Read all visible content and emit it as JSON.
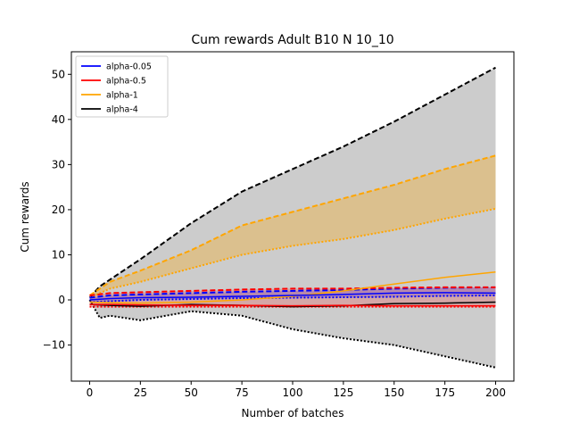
{
  "chart_data": {
    "type": "line",
    "title": "Cum rewards Adult B10 N 10_10",
    "xlabel": "Number of batches",
    "ylabel": "Cum rewards",
    "xlim": [
      -9,
      209
    ],
    "ylim": [
      -18,
      55
    ],
    "xticks": [
      0,
      25,
      50,
      75,
      100,
      125,
      150,
      175,
      200
    ],
    "yticks": [
      -10,
      0,
      10,
      20,
      30,
      40,
      50
    ],
    "legend_position": "top-left",
    "grid": false,
    "series": [
      {
        "name": "alpha-0.05",
        "color": "#0000ff",
        "mean": {
          "x": [
            0,
            10,
            25,
            50,
            75,
            100,
            125,
            150,
            175,
            200
          ],
          "y": [
            0,
            0.3,
            0.5,
            0.6,
            0.8,
            1.0,
            1.2,
            1.5,
            1.6,
            1.5
          ]
        },
        "upper": {
          "x": [
            0,
            10,
            25,
            50,
            75,
            100,
            125,
            150,
            175,
            200
          ],
          "y": [
            0.5,
            1.0,
            1.2,
            1.5,
            1.8,
            2.0,
            2.2,
            2.5,
            2.7,
            2.8
          ]
        },
        "lower": {
          "x": [
            0,
            10,
            25,
            50,
            75,
            100,
            125,
            150,
            175,
            200
          ],
          "y": [
            -0.5,
            -0.3,
            0,
            0.2,
            0.4,
            0.5,
            0.6,
            0.7,
            0.9,
            1.0
          ]
        }
      },
      {
        "name": "alpha-0.5",
        "color": "#ff0000",
        "mean": {
          "x": [
            0,
            10,
            25,
            50,
            75,
            100,
            125,
            150,
            175,
            200
          ],
          "y": [
            -1.0,
            -1.0,
            -1.1,
            -1.2,
            -1.2,
            -1.3,
            -1.2,
            -1.3,
            -1.3,
            -1.3
          ]
        },
        "upper": {
          "x": [
            0,
            10,
            25,
            50,
            75,
            100,
            125,
            150,
            175,
            200
          ],
          "y": [
            1.0,
            1.5,
            1.7,
            2.0,
            2.3,
            2.5,
            2.5,
            2.7,
            2.8,
            2.8
          ]
        },
        "lower": {
          "x": [
            0,
            10,
            25,
            50,
            75,
            100,
            125,
            150,
            175,
            200
          ],
          "y": [
            -1.5,
            -1.5,
            -1.5,
            -1.5,
            -1.5,
            -1.5,
            -1.5,
            -1.5,
            -1.5,
            -1.5
          ]
        }
      },
      {
        "name": "alpha-1",
        "color": "#ffa500",
        "mean": {
          "x": [
            0,
            10,
            25,
            50,
            75,
            100,
            125,
            150,
            175,
            200
          ],
          "y": [
            -0.5,
            -0.6,
            -0.7,
            -0.5,
            0,
            0.8,
            2.0,
            3.5,
            5.0,
            6.2
          ]
        },
        "upper": {
          "x": [
            0,
            10,
            25,
            50,
            75,
            100,
            125,
            150,
            175,
            200
          ],
          "y": [
            1.0,
            4.0,
            6.5,
            11.0,
            16.5,
            19.5,
            22.5,
            25.5,
            29.0,
            32.0
          ]
        },
        "lower": {
          "x": [
            0,
            10,
            25,
            50,
            75,
            100,
            125,
            150,
            175,
            200
          ],
          "y": [
            0.5,
            2.5,
            4.0,
            7.0,
            10.0,
            12.0,
            13.5,
            15.5,
            18.0,
            20.2
          ]
        }
      },
      {
        "name": "alpha-4",
        "color": "#000000",
        "mean": {
          "x": [
            0,
            10,
            25,
            50,
            75,
            100,
            125,
            150,
            175,
            200
          ],
          "y": [
            -1.0,
            -1.2,
            -1.4,
            -1.0,
            -1.2,
            -1.5,
            -1.3,
            -0.8,
            -0.7,
            -0.5
          ]
        },
        "upper": {
          "x": [
            0,
            5,
            10,
            25,
            50,
            75,
            100,
            125,
            150,
            175,
            200
          ],
          "y": [
            0.5,
            3.0,
            4.5,
            9.0,
            17.0,
            24.0,
            29.0,
            34.0,
            39.5,
            45.5,
            51.5
          ]
        },
        "lower": {
          "x": [
            0,
            5,
            10,
            25,
            50,
            75,
            100,
            125,
            150,
            175,
            200
          ],
          "y": [
            0,
            -4.0,
            -3.5,
            -4.5,
            -2.5,
            -3.5,
            -6.5,
            -8.5,
            -10.0,
            -12.5,
            -15.0
          ]
        }
      }
    ]
  }
}
